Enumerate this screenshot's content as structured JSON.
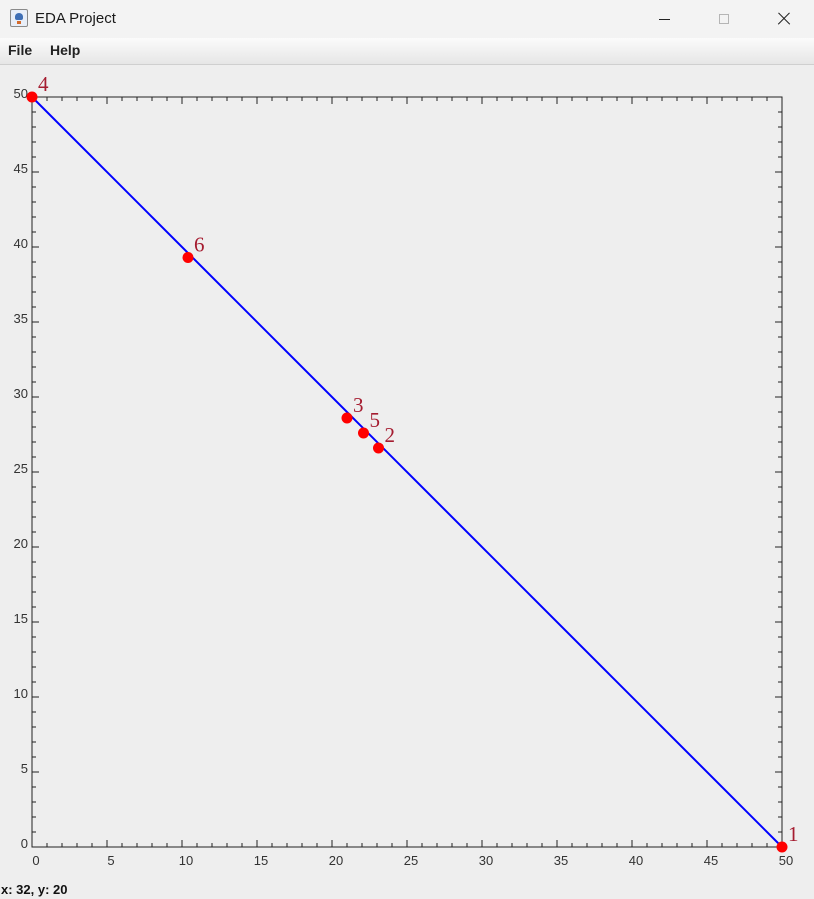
{
  "window": {
    "title": "EDA Project",
    "icon": "java-cup-icon",
    "controls": [
      "minimize",
      "maximize",
      "close"
    ]
  },
  "menu": {
    "items": [
      {
        "label": "File"
      },
      {
        "label": "Help"
      }
    ]
  },
  "chart_data": {
    "type": "line",
    "xlim": [
      0,
      50
    ],
    "ylim": [
      0,
      50
    ],
    "x_ticks": [
      0,
      5,
      10,
      15,
      20,
      25,
      30,
      35,
      40,
      45,
      50
    ],
    "y_ticks": [
      0,
      5,
      10,
      15,
      20,
      25,
      30,
      35,
      40,
      45,
      50
    ],
    "line": {
      "from": [
        0,
        50
      ],
      "to": [
        50,
        0
      ],
      "color": "#0000ff"
    },
    "points": [
      {
        "label": "1",
        "x": 50,
        "y": 0
      },
      {
        "label": "2",
        "x": 23.1,
        "y": 26.6
      },
      {
        "label": "3",
        "x": 21.0,
        "y": 28.6
      },
      {
        "label": "4",
        "x": 0,
        "y": 50
      },
      {
        "label": "5",
        "x": 22.1,
        "y": 27.6
      },
      {
        "label": "6",
        "x": 10.4,
        "y": 39.3
      }
    ],
    "point_color": "#ff0000",
    "label_color": "#a51c30",
    "grid": false
  },
  "status": {
    "text": "x: 32, y: 20"
  }
}
